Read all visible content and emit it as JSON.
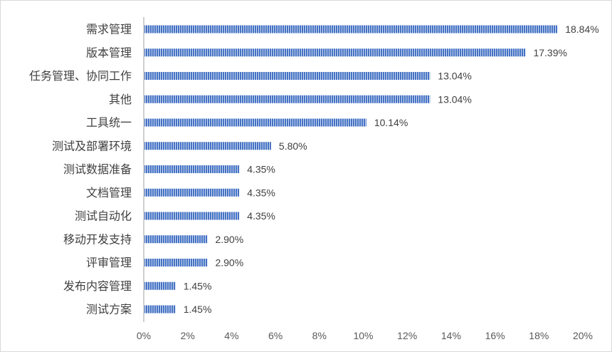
{
  "chart_data": {
    "type": "bar",
    "orientation": "horizontal",
    "categories": [
      "需求管理",
      "版本管理",
      "任务管理、协同工作",
      "其他",
      "工具统一",
      "测试及部署环境",
      "测试数据准备",
      "文档管理",
      "测试自动化",
      "移动开发支持",
      "评审管理",
      "发布内容管理",
      "测试方案"
    ],
    "values": [
      18.84,
      17.39,
      13.04,
      13.04,
      10.14,
      5.8,
      4.35,
      4.35,
      4.35,
      2.9,
      2.9,
      1.45,
      1.45
    ],
    "data_labels": [
      "18.84%",
      "17.39%",
      "13.04%",
      "13.04%",
      "10.14%",
      "5.80%",
      "4.35%",
      "4.35%",
      "4.35%",
      "2.90%",
      "2.90%",
      "1.45%",
      "1.45%"
    ],
    "x_ticks": [
      "0%",
      "2%",
      "4%",
      "6%",
      "8%",
      "10%",
      "12%",
      "14%",
      "16%",
      "18%",
      "20%"
    ],
    "xlim": [
      0,
      20
    ],
    "title": "",
    "xlabel": "",
    "ylabel": "",
    "grid": false,
    "legend": "none",
    "bar_color": "#4472c4",
    "bar_stripe_color": "#ffffff"
  }
}
